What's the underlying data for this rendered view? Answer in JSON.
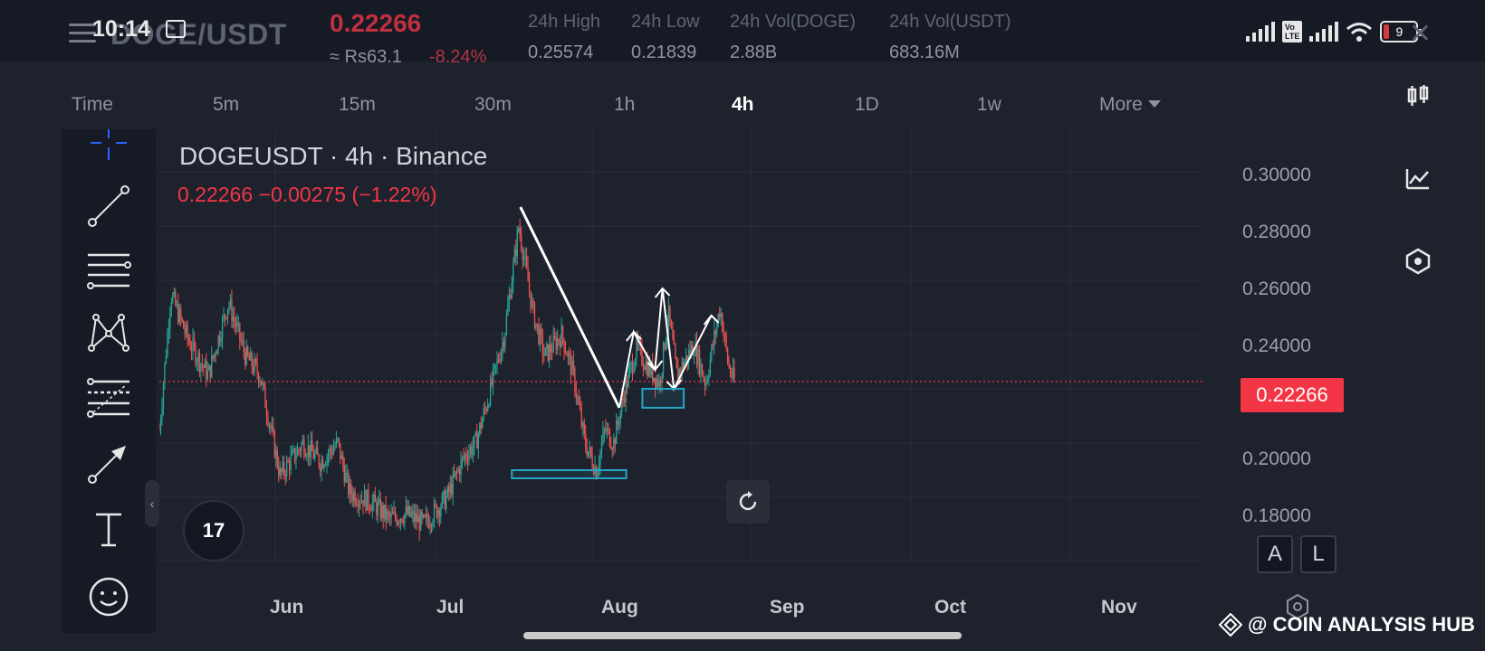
{
  "status_bar": {
    "time": "10:14",
    "battery": "9"
  },
  "header": {
    "pair": "DOGE/USDT",
    "last_price": "0.22266",
    "price_inr": "≈ Rs63.1",
    "change_pct": "-8.24%",
    "stats": [
      {
        "label": "24h High",
        "value": "0.25574"
      },
      {
        "label": "24h Low",
        "value": "0.21839"
      },
      {
        "label": "24h Vol(DOGE)",
        "value": "2.88B"
      },
      {
        "label": "24h Vol(USDT)",
        "value": "683.16M"
      }
    ]
  },
  "timeframes": [
    "Time",
    "5m",
    "15m",
    "30m",
    "1h",
    "4h",
    "1D",
    "1w",
    "More"
  ],
  "active_timeframe": "4h",
  "chart": {
    "title": "DOGEUSDT · 4h · Binance",
    "ohlc_text": "0.22266  −0.00275 (−1.22%)",
    "current_price_tag": "0.22266",
    "price_axis": [
      "0.30000",
      "0.28000",
      "0.26000",
      "0.24000",
      "0.20000",
      "0.18000"
    ],
    "time_axis": [
      "Jun",
      "Jul",
      "Aug",
      "Sep",
      "Oct",
      "Nov"
    ],
    "logo_text": "17",
    "scale_buttons": [
      "A",
      "L"
    ],
    "colors": {
      "up": "#26a69a",
      "down": "#ef5350",
      "annotation_box": "#26a6c5",
      "background": "#1e222d"
    }
  },
  "watermark": "@ COIN ANALYSIS HUB",
  "chart_data": {
    "type": "candlestick",
    "symbol": "DOGEUSDT",
    "interval": "4h",
    "exchange": "Binance",
    "x_ticks": [
      "Jun",
      "Jul",
      "Aug",
      "Sep",
      "Oct",
      "Nov"
    ],
    "y_ticks": [
      0.18,
      0.2,
      0.24,
      0.26,
      0.28,
      0.3
    ],
    "ylim": [
      0.167,
      0.307
    ],
    "last_price": 0.22266,
    "change": -0.00275,
    "change_pct": -1.22,
    "price_path": [
      {
        "t": 0.0,
        "p": 0.205
      },
      {
        "t": 0.02,
        "p": 0.255
      },
      {
        "t": 0.05,
        "p": 0.238
      },
      {
        "t": 0.085,
        "p": 0.225
      },
      {
        "t": 0.12,
        "p": 0.252
      },
      {
        "t": 0.15,
        "p": 0.232
      },
      {
        "t": 0.175,
        "p": 0.225
      },
      {
        "t": 0.21,
        "p": 0.188
      },
      {
        "t": 0.25,
        "p": 0.2
      },
      {
        "t": 0.28,
        "p": 0.193
      },
      {
        "t": 0.31,
        "p": 0.2
      },
      {
        "t": 0.33,
        "p": 0.182
      },
      {
        "t": 0.37,
        "p": 0.178
      },
      {
        "t": 0.4,
        "p": 0.172
      },
      {
        "t": 0.43,
        "p": 0.174
      },
      {
        "t": 0.46,
        "p": 0.17
      },
      {
        "t": 0.5,
        "p": 0.18
      },
      {
        "t": 0.53,
        "p": 0.195
      },
      {
        "t": 0.55,
        "p": 0.2
      },
      {
        "t": 0.57,
        "p": 0.215
      },
      {
        "t": 0.6,
        "p": 0.24
      },
      {
        "t": 0.625,
        "p": 0.28
      },
      {
        "t": 0.65,
        "p": 0.248
      },
      {
        "t": 0.67,
        "p": 0.232
      },
      {
        "t": 0.7,
        "p": 0.24
      },
      {
        "t": 0.72,
        "p": 0.225
      },
      {
        "t": 0.74,
        "p": 0.2
      },
      {
        "t": 0.76,
        "p": 0.19
      },
      {
        "t": 0.775,
        "p": 0.205
      },
      {
        "t": 0.79,
        "p": 0.2
      },
      {
        "t": 0.81,
        "p": 0.22
      },
      {
        "t": 0.83,
        "p": 0.235
      },
      {
        "t": 0.85,
        "p": 0.228
      },
      {
        "t": 0.87,
        "p": 0.222
      },
      {
        "t": 0.885,
        "p": 0.248
      },
      {
        "t": 0.9,
        "p": 0.225
      },
      {
        "t": 0.93,
        "p": 0.236
      },
      {
        "t": 0.95,
        "p": 0.222
      },
      {
        "t": 0.975,
        "p": 0.25
      },
      {
        "t": 0.99,
        "p": 0.228
      },
      {
        "t": 1.0,
        "p": 0.2227
      }
    ],
    "annotations": [
      {
        "type": "line",
        "from_price": 0.287,
        "to_price": 0.213
      },
      {
        "type": "zigzag",
        "prices": [
          0.213,
          0.241,
          0.227,
          0.257,
          0.22,
          0.247
        ]
      },
      {
        "type": "box",
        "price_top": 0.19,
        "price_bottom": 0.187
      },
      {
        "type": "box",
        "price_top": 0.22,
        "price_bottom": 0.213
      }
    ]
  }
}
